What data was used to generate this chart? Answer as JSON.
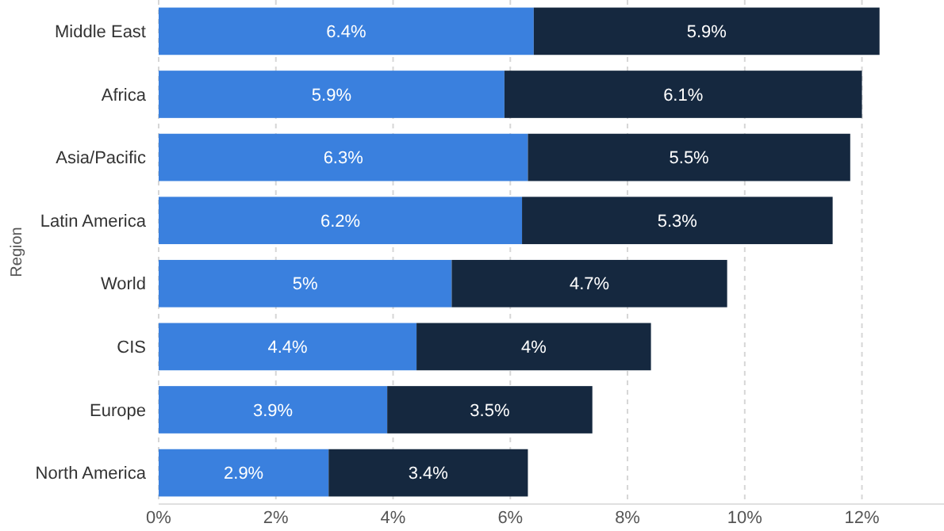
{
  "chart_data": {
    "type": "bar",
    "orientation": "horizontal",
    "stacked": true,
    "ylabel": "Region",
    "categories": [
      "Middle East",
      "Africa",
      "Asia/Pacific",
      "Latin America",
      "World",
      "CIS",
      "Europe",
      "North America"
    ],
    "series": [
      {
        "color": "#3a80de",
        "values": [
          6.4,
          5.9,
          6.3,
          6.2,
          5,
          4.4,
          3.9,
          2.9
        ],
        "value_labels": [
          "6.4%",
          "5.9%",
          "6.3%",
          "6.2%",
          "5%",
          "4.4%",
          "3.9%",
          "2.9%"
        ]
      },
      {
        "color": "#15283f",
        "values": [
          5.9,
          6.1,
          5.5,
          5.3,
          4.7,
          4,
          3.5,
          3.4
        ],
        "value_labels": [
          "5.9%",
          "6.1%",
          "5.5%",
          "5.3%",
          "4.7%",
          "4%",
          "3.5%",
          "3.4%"
        ]
      }
    ],
    "xlim": [
      0,
      13.4
    ],
    "xticks": [
      {
        "value": 0,
        "label": "0%"
      },
      {
        "value": 2,
        "label": "2%"
      },
      {
        "value": 4,
        "label": "4%"
      },
      {
        "value": 6,
        "label": "6%"
      },
      {
        "value": 8,
        "label": "8%"
      },
      {
        "value": 10,
        "label": "10%"
      },
      {
        "value": 12,
        "label": "12%"
      }
    ],
    "grid": "x"
  }
}
